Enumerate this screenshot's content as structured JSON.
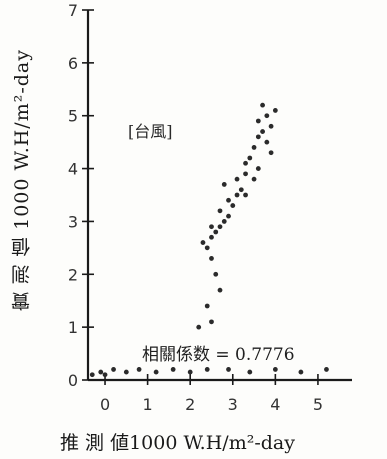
{
  "chart_data": {
    "type": "scatter",
    "title": "",
    "xlabel": "推 測 値1000 W.H/m²-day",
    "ylabel": "實 測 値 1000 W.H/m²-day",
    "xlim": [
      -0.4,
      5.8
    ],
    "ylim": [
      0,
      7
    ],
    "x_ticks": [
      "0",
      "1",
      "2",
      "3",
      "4",
      "5"
    ],
    "y_ticks": [
      "0",
      "1",
      "2",
      "3",
      "4",
      "5",
      "6",
      "7"
    ],
    "annotations": {
      "correlation": "相關係数 = 0.7776",
      "typhoon": "[台風]"
    },
    "grid": false,
    "legend": "none",
    "series": [
      {
        "points": [
          [
            -0.3,
            0.1
          ],
          [
            -0.1,
            0.15
          ],
          [
            0.0,
            0.1
          ],
          [
            0.2,
            0.2
          ],
          [
            0.5,
            0.15
          ],
          [
            0.8,
            0.2
          ],
          [
            1.2,
            0.15
          ],
          [
            1.6,
            0.2
          ],
          [
            2.0,
            0.15
          ],
          [
            2.4,
            0.2
          ],
          [
            2.9,
            0.2
          ],
          [
            3.4,
            0.15
          ],
          [
            4.0,
            0.2
          ],
          [
            4.6,
            0.15
          ],
          [
            5.2,
            0.2
          ],
          [
            2.2,
            1.0
          ],
          [
            2.4,
            1.4
          ],
          [
            2.5,
            1.1
          ],
          [
            2.7,
            1.7
          ],
          [
            2.6,
            2.0
          ],
          [
            2.5,
            2.3
          ],
          [
            2.3,
            2.6
          ],
          [
            2.4,
            2.5
          ],
          [
            2.5,
            2.7
          ],
          [
            2.6,
            2.8
          ],
          [
            2.7,
            2.9
          ],
          [
            2.8,
            3.0
          ],
          [
            2.9,
            3.1
          ],
          [
            2.5,
            2.9
          ],
          [
            2.7,
            3.2
          ],
          [
            2.9,
            3.4
          ],
          [
            3.0,
            3.3
          ],
          [
            3.1,
            3.5
          ],
          [
            3.2,
            3.6
          ],
          [
            3.3,
            3.5
          ],
          [
            3.1,
            3.8
          ],
          [
            3.3,
            3.9
          ],
          [
            3.5,
            3.8
          ],
          [
            3.6,
            4.0
          ],
          [
            3.4,
            4.2
          ],
          [
            3.5,
            4.4
          ],
          [
            3.6,
            4.6
          ],
          [
            3.7,
            4.7
          ],
          [
            3.8,
            4.5
          ],
          [
            3.9,
            4.8
          ],
          [
            3.6,
            4.9
          ],
          [
            3.8,
            5.0
          ],
          [
            4.0,
            5.1
          ],
          [
            3.7,
            5.2
          ],
          [
            3.9,
            4.3
          ],
          [
            3.3,
            4.1
          ],
          [
            2.8,
            3.7
          ]
        ]
      }
    ]
  }
}
